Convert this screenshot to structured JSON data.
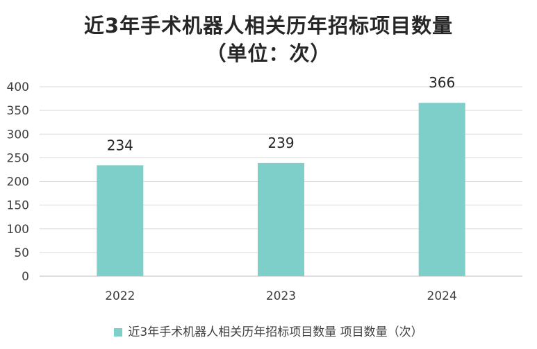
{
  "colors": {
    "bar": "#7ecfca",
    "grid": "#d9d9d9",
    "axis": "#bfbfbf"
  },
  "chart_data": {
    "type": "bar",
    "title_line1": "近3年手术机器人相关历年招标项目数量",
    "title_line2": "（单位：次）",
    "categories": [
      "2022",
      "2023",
      "2024"
    ],
    "series": [
      {
        "name": "近3年手术机器人相关历年招标项目数量 项目数量（次）",
        "values": [
          234,
          239,
          366
        ]
      }
    ],
    "ylim": [
      0,
      400
    ],
    "yticks": [
      0,
      50,
      100,
      150,
      200,
      250,
      300,
      350,
      400
    ],
    "grid": true,
    "legend_position": "bottom"
  }
}
